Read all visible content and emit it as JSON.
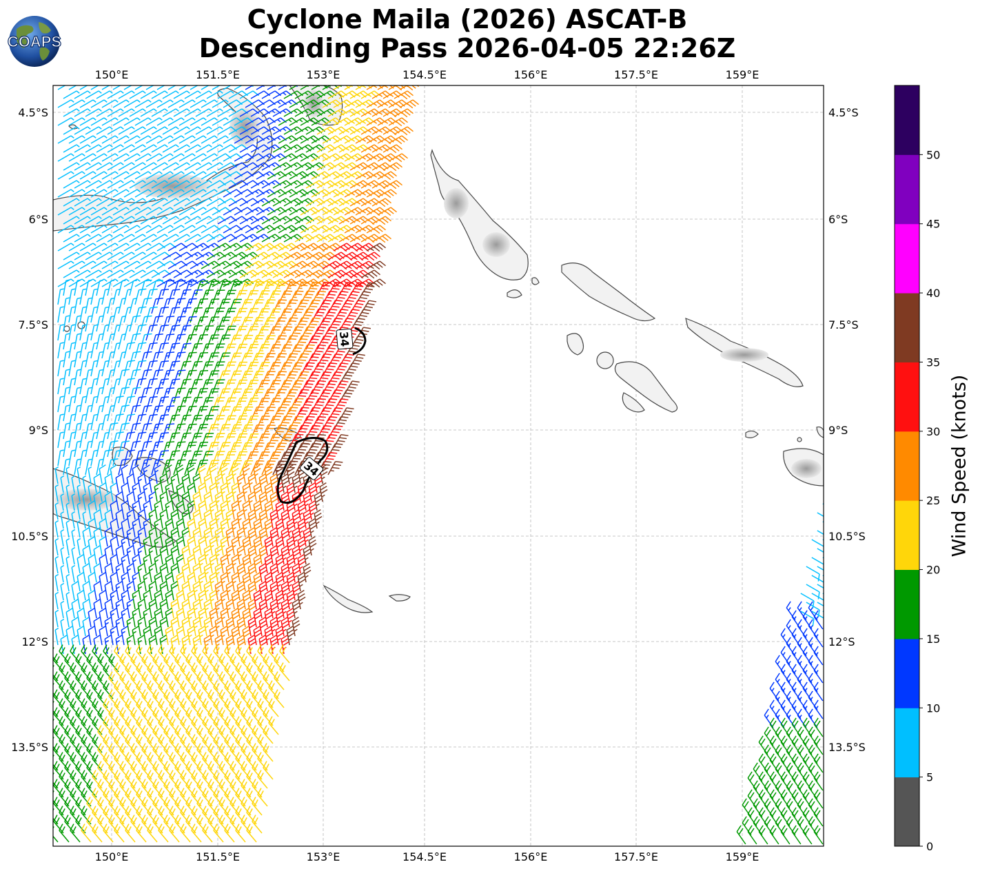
{
  "title": {
    "line1": "Cyclone Maila (2026) ASCAT-B",
    "line2": "Descending Pass 2026-04-05 22:26Z"
  },
  "logo": {
    "text": "COAPS",
    "icon": "globe-logo-icon"
  },
  "map": {
    "lon_labels": [
      "150°E",
      "151.5°E",
      "153°E",
      "154.5°E",
      "156°E",
      "157.5°E",
      "159°E"
    ],
    "lat_labels": [
      "4.5°S",
      "6°S",
      "7.5°S",
      "9°S",
      "10.5°S",
      "12°S",
      "13.5°S"
    ],
    "contour_labels": [
      "34",
      "34"
    ],
    "land_color": "#f2f2f2",
    "coast_color": "#444444"
  },
  "colorbar": {
    "label": "Wind Speed (knots)",
    "ticks": [
      "0",
      "5",
      "10",
      "15",
      "20",
      "25",
      "30",
      "35",
      "40",
      "45",
      "50"
    ],
    "colors": [
      "#555555",
      "#00bfff",
      "#0038ff",
      "#009900",
      "#ffd60a",
      "#ff8a00",
      "#ff1010",
      "#7f3a22",
      "#ff00ff",
      "#8000bf",
      "#2d0060"
    ]
  }
}
